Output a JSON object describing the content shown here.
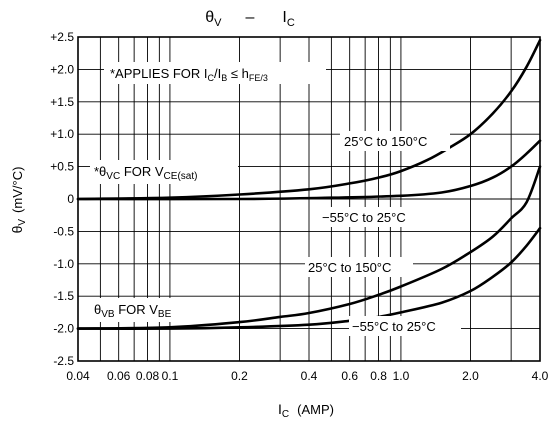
{
  "chart_data": {
    "type": "line",
    "title": {
      "main": "θ",
      "main_sub": "V",
      "dash": "–",
      "second": "I",
      "second_sub": "C"
    },
    "xlabel": {
      "main": "I",
      "sub": "C",
      "unit": "(AMP)"
    },
    "ylabel": {
      "main": "θ",
      "sub": "V",
      "unit": "(mV/°C)"
    },
    "x_scale": "log",
    "xlim": [
      0.04,
      4.0
    ],
    "ylim": [
      -2.5,
      2.5
    ],
    "grid": true,
    "x_ticks": [
      {
        "v": 0.04,
        "label": "0.04"
      },
      {
        "v": 0.06,
        "label": "0.06"
      },
      {
        "v": 0.08,
        "label": "0.08"
      },
      {
        "v": 0.1,
        "label": "0.1"
      },
      {
        "v": 0.2,
        "label": "0.2"
      },
      {
        "v": 0.4,
        "label": "0.4"
      },
      {
        "v": 0.6,
        "label": "0.6"
      },
      {
        "v": 0.8,
        "label": "0.8"
      },
      {
        "v": 1.0,
        "label": "1.0"
      },
      {
        "v": 2.0,
        "label": "2.0"
      },
      {
        "v": 4.0,
        "label": "4.0"
      }
    ],
    "x_grid": [
      0.04,
      0.05,
      0.06,
      0.07,
      0.08,
      0.09,
      0.1,
      0.2,
      0.3,
      0.4,
      0.5,
      0.6,
      0.7,
      0.8,
      0.9,
      1.0,
      2.0,
      3.0,
      4.0
    ],
    "y_ticks": [
      {
        "v": 2.5,
        "label": "+2.5"
      },
      {
        "v": 2.0,
        "label": "+2.0"
      },
      {
        "v": 1.5,
        "label": "+1.5"
      },
      {
        "v": 1.0,
        "label": "+1.0"
      },
      {
        "v": 0.5,
        "label": "+0.5"
      },
      {
        "v": 0,
        "label": "0"
      },
      {
        "v": -0.5,
        "label": "-0.5"
      },
      {
        "v": -1.0,
        "label": "-1.0"
      },
      {
        "v": -1.5,
        "label": "-1.5"
      },
      {
        "v": -2.0,
        "label": "-2.0"
      },
      {
        "v": -2.5,
        "label": "-2.5"
      }
    ],
    "series": [
      {
        "id": "vc-high",
        "x": [
          0.04,
          0.1,
          0.2,
          0.4,
          0.6,
          0.8,
          1.0,
          1.3,
          1.6,
          2.0,
          2.5,
          3.0,
          3.5,
          4.0
        ],
        "y": [
          0.0,
          0.02,
          0.07,
          0.15,
          0.24,
          0.33,
          0.43,
          0.6,
          0.78,
          1.0,
          1.32,
          1.66,
          2.04,
          2.45
        ]
      },
      {
        "id": "vc-low",
        "x": [
          0.04,
          0.2,
          0.5,
          1.0,
          1.5,
          2.0,
          2.5,
          3.0,
          3.5,
          4.0
        ],
        "y": [
          0.0,
          0.0,
          0.02,
          0.05,
          0.1,
          0.2,
          0.33,
          0.5,
          0.7,
          0.9
        ]
      },
      {
        "id": "vb-high",
        "x": [
          0.04,
          0.1,
          0.2,
          0.3,
          0.4,
          0.6,
          0.8,
          1.0,
          1.5,
          2.0,
          2.5,
          3.0,
          3.5,
          4.0
        ],
        "y": [
          -2.0,
          -1.98,
          -1.9,
          -1.82,
          -1.76,
          -1.62,
          -1.48,
          -1.35,
          -1.08,
          -0.82,
          -0.58,
          -0.3,
          -0.05,
          0.5
        ]
      },
      {
        "id": "vb-low",
        "x": [
          0.04,
          0.1,
          0.2,
          0.4,
          0.6,
          0.8,
          1.0,
          1.5,
          2.0,
          2.5,
          3.0,
          3.5,
          4.0
        ],
        "y": [
          -2.0,
          -2.0,
          -1.98,
          -1.94,
          -1.88,
          -1.82,
          -1.75,
          -1.6,
          -1.42,
          -1.2,
          -0.98,
          -0.72,
          -0.45
        ]
      }
    ],
    "annotations": {
      "applies": {
        "pre": "*APPLIES FOR I",
        "s1": "C",
        "m1": "/I",
        "s2": "B",
        "m2": " ≤ h",
        "s3": "FE/3"
      },
      "vc_label": {
        "pre": "*θ",
        "s1": "VC",
        "m1": " FOR V",
        "s2": "CE(sat)"
      },
      "vb_label": {
        "pre": "θ",
        "s1": "VB",
        "m1": " FOR V",
        "s2": "BE"
      },
      "temp_vc_high": "25°C to 150°C",
      "temp_vc_low": "−55°C to 25°C",
      "temp_vb_high": "25°C to 150°C",
      "temp_vb_low": "−55°C to 25°C"
    }
  }
}
